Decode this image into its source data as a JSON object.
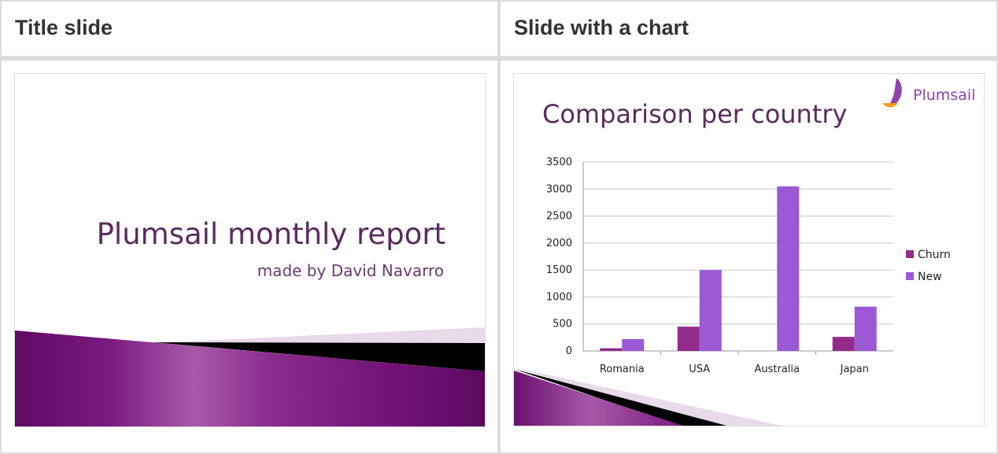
{
  "columns": [
    {
      "header": "Title slide",
      "slide": {
        "title": "Plumsail monthly report",
        "subtitle": "made by David Navarro"
      }
    },
    {
      "header": "Slide with a chart",
      "slide": {
        "title": "Comparison per country",
        "logo_text": "Plumsail"
      }
    }
  ],
  "colors": {
    "purple_dark": "#5b2a5f",
    "churn": "#922b8c",
    "new": "#9b59d6",
    "band_dark": "#6a0f6e",
    "band_light": "#e8dae9"
  },
  "chart_data": {
    "type": "bar",
    "categories": [
      "Romania",
      "USA",
      "Australia",
      "Japan"
    ],
    "series": [
      {
        "name": "Churn",
        "values": [
          50,
          450,
          0,
          260
        ]
      },
      {
        "name": "New",
        "values": [
          220,
          1500,
          3050,
          820
        ]
      }
    ],
    "yticks": [
      "0",
      "500",
      "1000",
      "1500",
      "2000",
      "2500",
      "3000",
      "3500"
    ],
    "ylim": [
      0,
      3500
    ],
    "grid": true,
    "legend": "right"
  }
}
